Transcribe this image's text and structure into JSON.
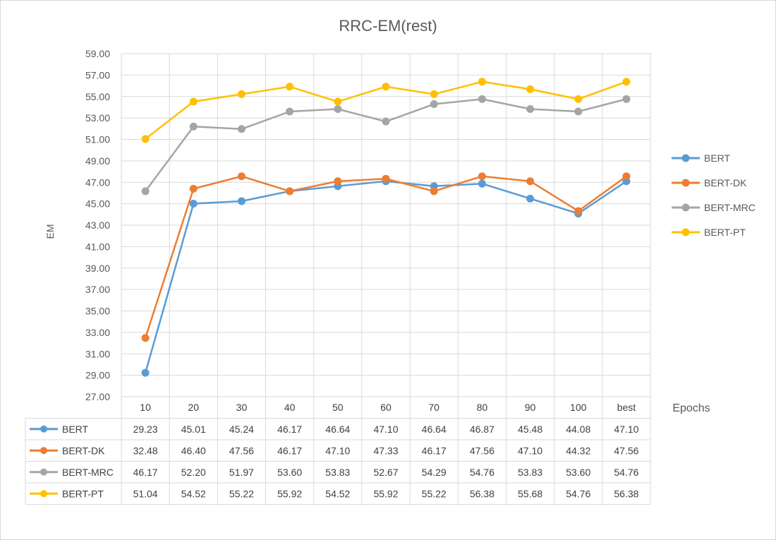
{
  "chart_data": {
    "type": "line",
    "title": "RRC-EM(rest)",
    "xlabel": "Epochs",
    "ylabel": "EM",
    "categories": [
      "10",
      "20",
      "30",
      "40",
      "50",
      "60",
      "70",
      "80",
      "90",
      "100",
      "best"
    ],
    "y_ticks": [
      "27.00",
      "29.00",
      "31.00",
      "33.00",
      "35.00",
      "37.00",
      "39.00",
      "41.00",
      "43.00",
      "45.00",
      "47.00",
      "49.00",
      "51.00",
      "53.00",
      "55.00",
      "57.00",
      "59.00"
    ],
    "ylim": [
      27,
      59
    ],
    "grid": true,
    "legend_position": "right",
    "data_table": true,
    "series": [
      {
        "name": "BERT",
        "color": "#5b9bd5",
        "values": [
          29.23,
          45.01,
          45.24,
          46.17,
          46.64,
          47.1,
          46.64,
          46.87,
          45.48,
          44.08,
          47.1
        ],
        "labels": [
          "29.23",
          "45.01",
          "45.24",
          "46.17",
          "46.64",
          "47.10",
          "46.64",
          "46.87",
          "45.48",
          "44.08",
          "47.10"
        ]
      },
      {
        "name": "BERT-DK",
        "color": "#ed7d31",
        "values": [
          32.48,
          46.4,
          47.56,
          46.17,
          47.1,
          47.33,
          46.17,
          47.56,
          47.1,
          44.32,
          47.56
        ],
        "labels": [
          "32.48",
          "46.40",
          "47.56",
          "46.17",
          "47.10",
          "47.33",
          "46.17",
          "47.56",
          "47.10",
          "44.32",
          "47.56"
        ]
      },
      {
        "name": "BERT-MRC",
        "color": "#a5a5a5",
        "values": [
          46.17,
          52.2,
          51.97,
          53.6,
          53.83,
          52.67,
          54.29,
          54.76,
          53.83,
          53.6,
          54.76
        ],
        "labels": [
          "46.17",
          "52.20",
          "51.97",
          "53.60",
          "53.83",
          "52.67",
          "54.29",
          "54.76",
          "53.83",
          "53.60",
          "54.76"
        ]
      },
      {
        "name": "BERT-PT",
        "color": "#ffc000",
        "values": [
          51.04,
          54.52,
          55.22,
          55.92,
          54.52,
          55.92,
          55.22,
          56.38,
          55.68,
          54.76,
          56.38
        ],
        "labels": [
          "51.04",
          "54.52",
          "55.22",
          "55.92",
          "54.52",
          "55.92",
          "55.22",
          "56.38",
          "55.68",
          "54.76",
          "56.38"
        ]
      }
    ]
  }
}
